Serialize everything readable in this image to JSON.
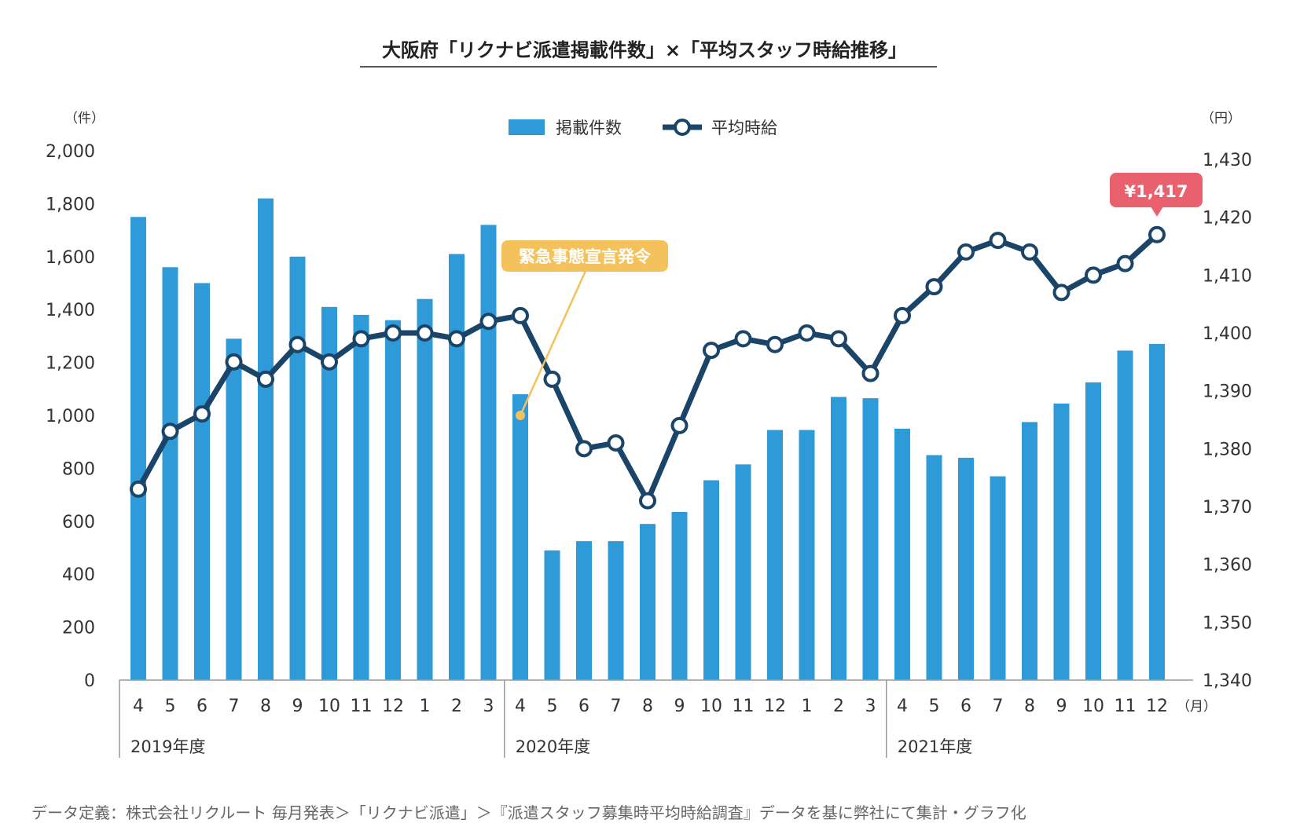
{
  "chart_data": {
    "type": "bar+line",
    "title": "大阪府「リクナビ派遣掲載件数」×「平均スタッフ時給推移」",
    "left_axis": {
      "unit": "（件）",
      "min": 0,
      "max": 2000,
      "ticks": [
        "0",
        "200",
        "400",
        "600",
        "800",
        "1,000",
        "1,200",
        "1,400",
        "1,600",
        "1,800",
        "2,000"
      ]
    },
    "right_axis": {
      "unit": "（円）",
      "min": 1340,
      "max": 1430,
      "ticks": [
        "1,340",
        "1,350",
        "1,360",
        "1,370",
        "1,380",
        "1,390",
        "1,400",
        "1,410",
        "1,420",
        "1,430"
      ]
    },
    "x_unit": "（月）",
    "categories": [
      "4",
      "5",
      "6",
      "7",
      "8",
      "9",
      "10",
      "11",
      "12",
      "1",
      "2",
      "3",
      "4",
      "5",
      "6",
      "7",
      "8",
      "9",
      "10",
      "11",
      "12",
      "1",
      "2",
      "3",
      "4",
      "5",
      "6",
      "7",
      "8",
      "9",
      "10",
      "11",
      "12"
    ],
    "fiscal_years": [
      {
        "label": "2019年度",
        "start": 0,
        "count": 12
      },
      {
        "label": "2020年度",
        "start": 12,
        "count": 12
      },
      {
        "label": "2021年度",
        "start": 24,
        "count": 9
      }
    ],
    "series": [
      {
        "name": "掲載件数",
        "type": "bar",
        "axis": "left",
        "color": "#2e9ad8",
        "values": [
          1750,
          1560,
          1500,
          1290,
          1820,
          1600,
          1410,
          1380,
          1360,
          1440,
          1610,
          1720,
          1080,
          490,
          525,
          525,
          590,
          635,
          755,
          815,
          945,
          945,
          1070,
          1065,
          950,
          850,
          840,
          770,
          975,
          1045,
          1125,
          1245,
          1270
        ]
      },
      {
        "name": "平均時給",
        "type": "line",
        "axis": "right",
        "color": "#1a4468",
        "values": [
          1373,
          1383,
          1386,
          1395,
          1392,
          1398,
          1395,
          1399,
          1400,
          1400,
          1399,
          1402,
          1403,
          1392,
          1380,
          1381,
          1371,
          1384,
          1397,
          1399,
          1398,
          1400,
          1399,
          1393,
          1403,
          1408,
          1414,
          1416,
          1414,
          1407,
          1410,
          1412,
          1417
        ]
      }
    ],
    "annotations": [
      {
        "text": "緊急事態宣言発令",
        "index": 12,
        "color": "#f5c15b"
      },
      {
        "text": "¥1,417",
        "index": 32,
        "color": "#e9606e"
      }
    ],
    "footer": "データ定義：株式会社リクルート 毎月発表＞「リクナビ派遣」＞『派遣スタッフ募集時平均時給調査』データを基に弊社にて集計・グラフ化"
  }
}
